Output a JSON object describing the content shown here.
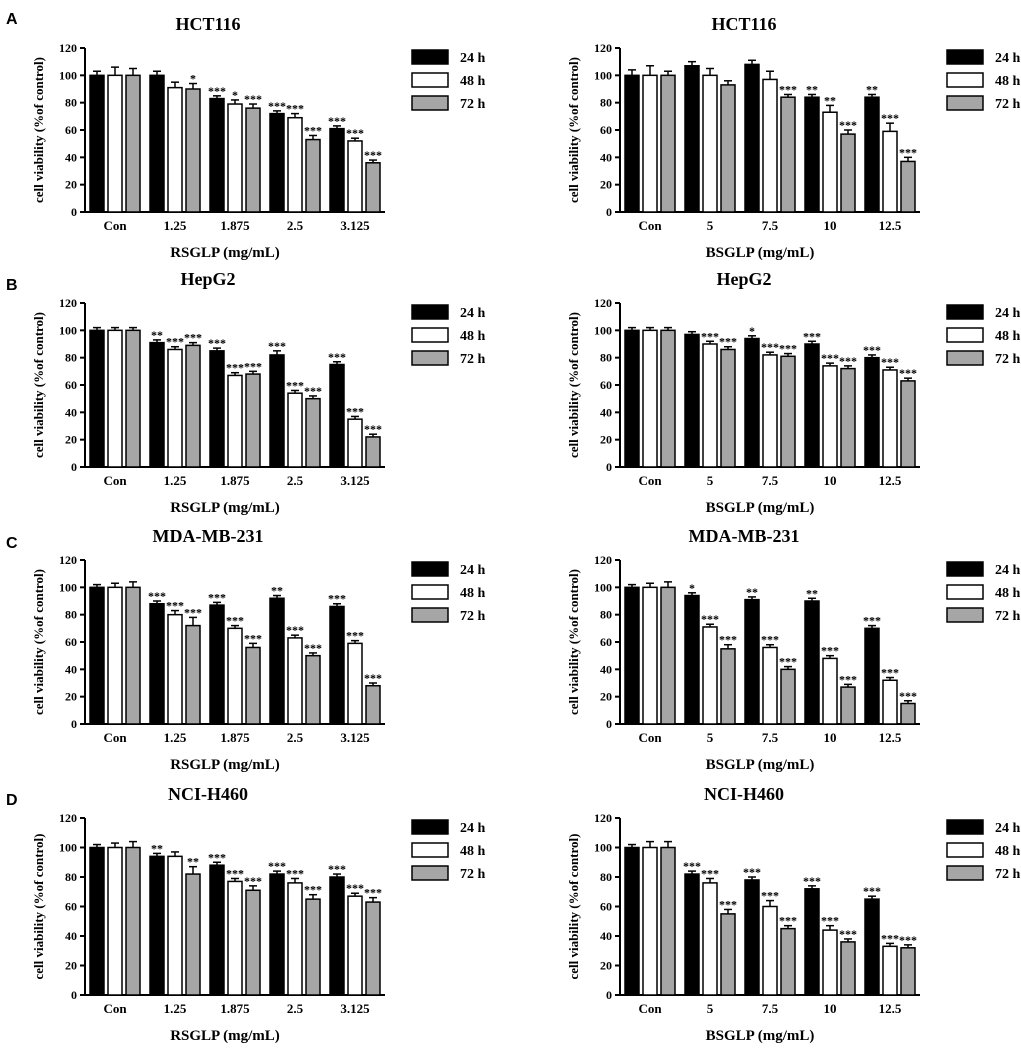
{
  "figure": {
    "panel_letters": [
      "A",
      "B",
      "C",
      "D"
    ],
    "legend": [
      "24 h",
      "48 h",
      "72 h"
    ],
    "colors": {
      "24 h": "#000000",
      "48 h": "#ffffff",
      "72 h": "#a6a6a6"
    }
  },
  "chart_data": [
    {
      "type": "bar",
      "title": "HCT116",
      "xlabel": "RSGLP (mg/mL)",
      "ylabel": "cell viability (%of control)",
      "ylim": [
        0,
        120
      ],
      "yticks": [
        0,
        20,
        40,
        60,
        80,
        100,
        120
      ],
      "categories": [
        "Con",
        "1.25",
        "1.875",
        "2.5",
        "3.125"
      ],
      "series": [
        {
          "name": "24 h",
          "values": [
            100,
            100,
            83,
            72,
            61
          ],
          "errors": [
            3,
            3,
            2,
            2,
            2
          ],
          "sig": [
            "",
            "",
            "***",
            "***",
            "***"
          ]
        },
        {
          "name": "48 h",
          "values": [
            100,
            91,
            79,
            69,
            52
          ],
          "errors": [
            6,
            4,
            3,
            3,
            2
          ],
          "sig": [
            "",
            "",
            "*",
            "***",
            "***"
          ]
        },
        {
          "name": "72 h",
          "values": [
            100,
            90,
            76,
            53,
            36
          ],
          "errors": [
            5,
            4,
            3,
            3,
            2
          ],
          "sig": [
            "",
            "*",
            "***",
            "***",
            "***"
          ]
        }
      ]
    },
    {
      "type": "bar",
      "title": "HCT116",
      "xlabel": "BSGLP (mg/mL)",
      "ylabel": "cell viability (%of control)",
      "ylim": [
        0,
        120
      ],
      "yticks": [
        0,
        20,
        40,
        60,
        80,
        100,
        120
      ],
      "categories": [
        "Con",
        "5",
        "7.5",
        "10",
        "12.5"
      ],
      "series": [
        {
          "name": "24 h",
          "values": [
            100,
            107,
            108,
            84,
            84
          ],
          "errors": [
            4,
            3,
            3,
            2,
            2
          ],
          "sig": [
            "",
            "",
            "",
            "**",
            "**"
          ]
        },
        {
          "name": "48 h",
          "values": [
            100,
            100,
            97,
            73,
            59
          ],
          "errors": [
            7,
            5,
            6,
            5,
            6
          ],
          "sig": [
            "",
            "",
            "",
            "**",
            "***"
          ]
        },
        {
          "name": "72 h",
          "values": [
            100,
            93,
            84,
            57,
            37
          ],
          "errors": [
            3,
            3,
            2,
            3,
            3
          ],
          "sig": [
            "",
            "",
            "***",
            "***",
            "***"
          ]
        }
      ]
    },
    {
      "type": "bar",
      "title": "HepG2",
      "xlabel": "RSGLP (mg/mL)",
      "ylabel": "cell viability (%of control)",
      "ylim": [
        0,
        120
      ],
      "yticks": [
        0,
        20,
        40,
        60,
        80,
        100,
        120
      ],
      "categories": [
        "Con",
        "1.25",
        "1.875",
        "2.5",
        "3.125"
      ],
      "series": [
        {
          "name": "24 h",
          "values": [
            100,
            91,
            85,
            82,
            75
          ],
          "errors": [
            2,
            2,
            2,
            3,
            2
          ],
          "sig": [
            "",
            "**",
            "***",
            "***",
            "***"
          ]
        },
        {
          "name": "48 h",
          "values": [
            100,
            86,
            67,
            54,
            35
          ],
          "errors": [
            2,
            2,
            2,
            2,
            2
          ],
          "sig": [
            "",
            "***",
            "***",
            "***",
            "***"
          ]
        },
        {
          "name": "72 h",
          "values": [
            100,
            89,
            68,
            50,
            22
          ],
          "errors": [
            2,
            2,
            2,
            2,
            2
          ],
          "sig": [
            "",
            "***",
            "***",
            "***",
            "***"
          ]
        }
      ]
    },
    {
      "type": "bar",
      "title": "HepG2",
      "xlabel": "BSGLP (mg/mL)",
      "ylabel": "cell viability (%of control)",
      "ylim": [
        0,
        120
      ],
      "yticks": [
        0,
        20,
        40,
        60,
        80,
        100,
        120
      ],
      "categories": [
        "Con",
        "5",
        "7.5",
        "10",
        "12.5"
      ],
      "series": [
        {
          "name": "24 h",
          "values": [
            100,
            97,
            94,
            90,
            80
          ],
          "errors": [
            2,
            2,
            2,
            2,
            2
          ],
          "sig": [
            "",
            "",
            "*",
            "***",
            "***"
          ]
        },
        {
          "name": "48 h",
          "values": [
            100,
            90,
            82,
            74,
            71
          ],
          "errors": [
            2,
            2,
            2,
            2,
            2
          ],
          "sig": [
            "",
            "***",
            "***",
            "***",
            "***"
          ]
        },
        {
          "name": "72 h",
          "values": [
            100,
            86,
            81,
            72,
            63
          ],
          "errors": [
            2,
            2,
            2,
            2,
            2
          ],
          "sig": [
            "",
            "***",
            "***",
            "***",
            "***"
          ]
        }
      ]
    },
    {
      "type": "bar",
      "title": "MDA-MB-231",
      "xlabel": "RSGLP (mg/mL)",
      "ylabel": "cell viability (%of control)",
      "ylim": [
        0,
        120
      ],
      "yticks": [
        0,
        20,
        40,
        60,
        80,
        100,
        120
      ],
      "categories": [
        "Con",
        "1.25",
        "1.875",
        "2.5",
        "3.125"
      ],
      "series": [
        {
          "name": "24 h",
          "values": [
            100,
            88,
            87,
            92,
            86
          ],
          "errors": [
            2,
            2,
            2,
            2,
            2
          ],
          "sig": [
            "",
            "***",
            "***",
            "**",
            "***"
          ]
        },
        {
          "name": "48 h",
          "values": [
            100,
            80,
            70,
            63,
            59
          ],
          "errors": [
            3,
            3,
            2,
            2,
            2
          ],
          "sig": [
            "",
            "***",
            "***",
            "***",
            "***"
          ]
        },
        {
          "name": "72 h",
          "values": [
            100,
            72,
            56,
            50,
            28
          ],
          "errors": [
            4,
            6,
            3,
            2,
            2
          ],
          "sig": [
            "",
            "***",
            "***",
            "***",
            "***"
          ]
        }
      ]
    },
    {
      "type": "bar",
      "title": "MDA-MB-231",
      "xlabel": "BSGLP (mg/mL)",
      "ylabel": "cell viability (%of control)",
      "ylim": [
        0,
        120
      ],
      "yticks": [
        0,
        20,
        40,
        60,
        80,
        100,
        120
      ],
      "categories": [
        "Con",
        "5",
        "7.5",
        "10",
        "12.5"
      ],
      "series": [
        {
          "name": "24 h",
          "values": [
            100,
            94,
            91,
            90,
            70
          ],
          "errors": [
            2,
            2,
            2,
            2,
            2
          ],
          "sig": [
            "",
            "*",
            "**",
            "**",
            "***"
          ]
        },
        {
          "name": "48 h",
          "values": [
            100,
            71,
            56,
            48,
            32
          ],
          "errors": [
            3,
            2,
            2,
            2,
            2
          ],
          "sig": [
            "",
            "***",
            "***",
            "***",
            "***"
          ]
        },
        {
          "name": "72 h",
          "values": [
            100,
            55,
            40,
            27,
            15
          ],
          "errors": [
            4,
            3,
            2,
            2,
            2
          ],
          "sig": [
            "",
            "***",
            "***",
            "***",
            "***"
          ]
        }
      ]
    },
    {
      "type": "bar",
      "title": "NCI-H460",
      "xlabel": "RSGLP (mg/mL)",
      "ylabel": "cell viability (%of control)",
      "ylim": [
        0,
        120
      ],
      "yticks": [
        0,
        20,
        40,
        60,
        80,
        100,
        120
      ],
      "categories": [
        "Con",
        "1.25",
        "1.875",
        "2.5",
        "3.125"
      ],
      "series": [
        {
          "name": "24 h",
          "values": [
            100,
            94,
            88,
            82,
            80
          ],
          "errors": [
            2,
            2,
            2,
            2,
            2
          ],
          "sig": [
            "",
            "**",
            "***",
            "***",
            "***"
          ]
        },
        {
          "name": "48 h",
          "values": [
            100,
            94,
            77,
            76,
            67
          ],
          "errors": [
            3,
            3,
            2,
            3,
            2
          ],
          "sig": [
            "",
            "",
            "***",
            "***",
            "***"
          ]
        },
        {
          "name": "72 h",
          "values": [
            100,
            82,
            71,
            65,
            63
          ],
          "errors": [
            4,
            5,
            3,
            3,
            3
          ],
          "sig": [
            "",
            "**",
            "***",
            "***",
            "***"
          ]
        }
      ]
    },
    {
      "type": "bar",
      "title": "NCI-H460",
      "xlabel": "BSGLP (mg/mL)",
      "ylabel": "cell viability (%of control)",
      "ylim": [
        0,
        120
      ],
      "yticks": [
        0,
        20,
        40,
        60,
        80,
        100,
        120
      ],
      "categories": [
        "Con",
        "5",
        "7.5",
        "10",
        "12.5"
      ],
      "series": [
        {
          "name": "24 h",
          "values": [
            100,
            82,
            78,
            72,
            65
          ],
          "errors": [
            2,
            2,
            2,
            2,
            2
          ],
          "sig": [
            "",
            "***",
            "***",
            "***",
            "***"
          ]
        },
        {
          "name": "48 h",
          "values": [
            100,
            76,
            60,
            44,
            33
          ],
          "errors": [
            4,
            3,
            4,
            3,
            2
          ],
          "sig": [
            "",
            "***",
            "***",
            "***",
            "***"
          ]
        },
        {
          "name": "72 h",
          "values": [
            100,
            55,
            45,
            36,
            32
          ],
          "errors": [
            4,
            3,
            2,
            2,
            2
          ],
          "sig": [
            "",
            "***",
            "***",
            "***",
            "***"
          ]
        }
      ]
    }
  ]
}
